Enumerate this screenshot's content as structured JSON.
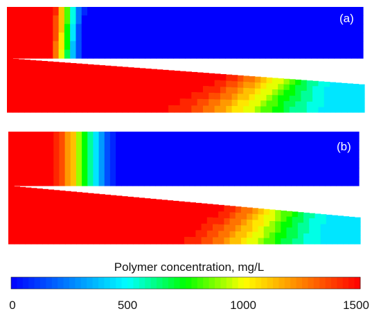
{
  "panels": [
    {
      "label": "(a)"
    },
    {
      "label": "(b)"
    }
  ],
  "colorbar": {
    "title": "Polymer concentration, mg/L",
    "ticks": [
      "0",
      "500",
      "1000",
      "1500"
    ],
    "min": 0,
    "max": 1500,
    "colormap": [
      "#0000ff",
      "#0080ff",
      "#00ffff",
      "#00ff00",
      "#ffff00",
      "#ff8000",
      "#ff0000"
    ]
  }
}
